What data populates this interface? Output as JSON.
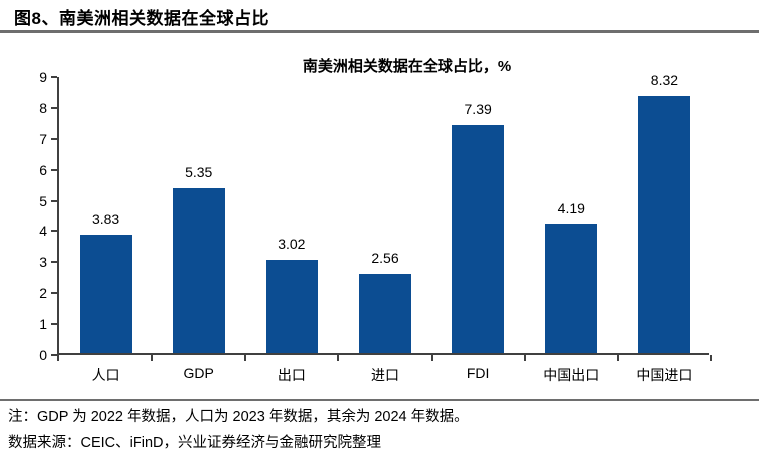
{
  "page": {
    "header_title": "图8、南美洲相关数据在全球占比",
    "note": "注：GDP 为 2022 年数据，人口为 2023 年数据，其余为 2024 年数据。",
    "source": "数据来源：CEIC、iFinD，兴业证券经济与金融研究院整理"
  },
  "chart_data": {
    "type": "bar",
    "title": "南美洲相关数据在全球占比，%",
    "categories": [
      "人口",
      "GDP",
      "出口",
      "进口",
      "FDI",
      "中国出口",
      "中国进口"
    ],
    "values": [
      3.83,
      5.35,
      3.02,
      2.56,
      7.39,
      4.19,
      8.32
    ],
    "data_labels": [
      "3.83",
      "5.35",
      "3.02",
      "2.56",
      "7.39",
      "4.19",
      "8.32"
    ],
    "xlabel": "",
    "ylabel": "",
    "ylim": [
      0,
      9
    ],
    "ytick_interval": 1,
    "ytick_labels": [
      "0",
      "1",
      "2",
      "3",
      "4",
      "5",
      "6",
      "7",
      "8",
      "9"
    ],
    "grid": false,
    "legend_position": "none",
    "bar_color": "#0C4D92",
    "axis_color": "#404040",
    "label_color": "#000000"
  }
}
